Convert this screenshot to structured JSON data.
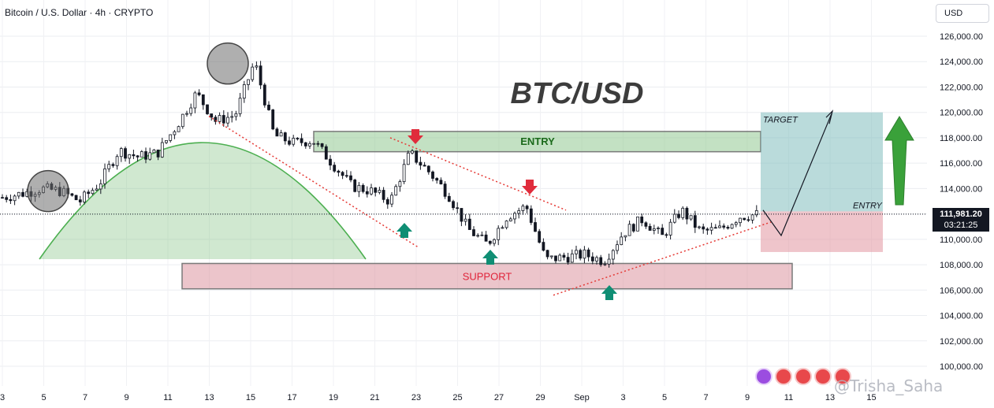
{
  "header": {
    "symbol_line": "Bitcoin / U.S. Dollar · 4h · CRYPTO"
  },
  "currency_button": "USD",
  "current_price": {
    "price": "111,981.20",
    "countdown": "03:21:25"
  },
  "watermark": "@Trisha_Saha",
  "chart_data": {
    "type": "candlestick",
    "title": "BTC/USD",
    "ylim": [
      99500,
      127000
    ],
    "y_ticks": [
      100000,
      102000,
      104000,
      106000,
      108000,
      110000,
      112000,
      114000,
      116000,
      118000,
      120000,
      122000,
      124000,
      126000
    ],
    "y_tick_labels": [
      "100,000.00",
      "102,000.00",
      "104,000.00",
      "106,000.00",
      "108,000.00",
      "110,000.00",
      "112,000.00",
      "114,000.00",
      "116,000.00",
      "118,000.00",
      "120,000.00",
      "122,000.00",
      "124,000.00",
      "126,000.00"
    ],
    "x_tick_labels": [
      "3",
      "5",
      "7",
      "9",
      "11",
      "13",
      "15",
      "17",
      "19",
      "21",
      "23",
      "25",
      "27",
      "29",
      "Sep",
      "3",
      "5",
      "7",
      "9",
      "11",
      "13",
      "15"
    ],
    "grid": true,
    "current_price_value": 111981.2,
    "annotations": {
      "entry_zone": {
        "label": "ENTRY",
        "from": 116900,
        "to": 118500
      },
      "support_zone": {
        "label": "SUPPORT",
        "from": 106100,
        "to": 108100
      },
      "target_box": {
        "label": "TARGET",
        "from": 112200,
        "to": 120000
      },
      "stop_box": {
        "from": 109000,
        "to": 112200
      },
      "entry_line_label": "ENTRY"
    },
    "path_points": [
      [
        "Aug 1",
        113300
      ],
      [
        "Aug 2",
        113600
      ],
      [
        "Aug 3",
        114000
      ],
      [
        "Aug 4",
        113800
      ],
      [
        "Aug 5",
        113000
      ],
      [
        "Aug 6",
        114400
      ],
      [
        "Aug 7",
        117000
      ],
      [
        "Aug 8",
        116500
      ],
      [
        "Aug 9",
        116800
      ],
      [
        "Aug 10",
        119000
      ],
      [
        "Aug 11",
        121500
      ],
      [
        "Aug 12",
        119300
      ],
      [
        "Aug 13",
        119800
      ],
      [
        "Aug 14",
        124000
      ],
      [
        "Aug 15",
        118200
      ],
      [
        "Aug 16",
        117600
      ],
      [
        "Aug 17",
        117800
      ],
      [
        "Aug 18",
        116000
      ],
      [
        "Aug 19",
        114200
      ],
      [
        "Aug 20",
        113800
      ],
      [
        "Aug 21",
        113000
      ],
      [
        "Aug 22",
        116800
      ],
      [
        "Aug 23",
        115300
      ],
      [
        "Aug 24",
        113500
      ],
      [
        "Aug 25",
        110800
      ],
      [
        "Aug 26",
        109600
      ],
      [
        "Aug 27",
        111800
      ],
      [
        "Aug 28",
        112600
      ],
      [
        "Aug 29",
        108400
      ],
      [
        "Aug 30",
        108600
      ],
      [
        "Aug 31",
        108800
      ],
      [
        "Sep 1",
        108300
      ],
      [
        "Sep 2",
        110500
      ],
      [
        "Sep 3",
        111600
      ],
      [
        "Sep 4",
        110200
      ],
      [
        "Sep 5",
        112300
      ],
      [
        "Sep 6",
        110600
      ],
      [
        "Sep 7",
        110800
      ],
      [
        "Sep 8",
        111800
      ],
      [
        "Sep 9",
        111980
      ]
    ]
  }
}
